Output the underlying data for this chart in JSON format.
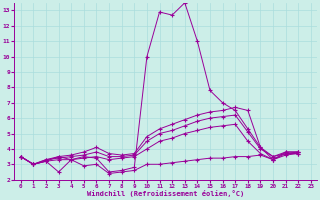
{
  "xlabel": "Windchill (Refroidissement éolien,°C)",
  "bg_color": "#cceee8",
  "grid_color": "#aadddd",
  "line_color": "#990099",
  "xlim": [
    -0.5,
    23.5
  ],
  "ylim": [
    2,
    13.5
  ],
  "xticks": [
    0,
    1,
    2,
    3,
    4,
    5,
    6,
    7,
    8,
    9,
    10,
    11,
    12,
    13,
    14,
    15,
    16,
    17,
    18,
    19,
    20,
    21,
    22,
    23
  ],
  "yticks": [
    2,
    3,
    4,
    5,
    6,
    7,
    8,
    9,
    10,
    11,
    12,
    13
  ],
  "lines": [
    {
      "x": [
        0,
        1,
        2,
        3,
        4,
        5,
        6,
        7,
        8,
        9,
        10,
        11,
        12,
        13,
        14,
        15,
        16,
        17,
        18,
        19,
        20,
        21,
        22
      ],
      "y": [
        3.5,
        3.0,
        3.2,
        3.5,
        3.3,
        3.5,
        3.4,
        2.5,
        2.6,
        2.8,
        10.0,
        12.9,
        12.7,
        13.5,
        11.0,
        7.8,
        7.0,
        6.5,
        5.3,
        4.1,
        3.3,
        3.8,
        3.8
      ]
    },
    {
      "x": [
        0,
        1,
        2,
        3,
        4,
        5,
        6,
        7,
        8,
        9,
        10,
        11,
        12,
        13,
        14,
        15,
        16,
        17,
        18,
        19,
        20,
        21,
        22
      ],
      "y": [
        3.5,
        3.0,
        3.3,
        3.5,
        3.6,
        3.8,
        4.1,
        3.7,
        3.6,
        3.7,
        4.8,
        5.3,
        5.6,
        5.9,
        6.2,
        6.4,
        6.5,
        6.7,
        6.5,
        4.1,
        3.5,
        3.8,
        3.8
      ]
    },
    {
      "x": [
        0,
        1,
        2,
        3,
        4,
        5,
        6,
        7,
        8,
        9,
        10,
        11,
        12,
        13,
        14,
        15,
        16,
        17,
        18,
        19,
        20,
        21,
        22
      ],
      "y": [
        3.5,
        3.0,
        3.3,
        3.4,
        3.5,
        3.6,
        3.8,
        3.5,
        3.5,
        3.6,
        4.5,
        5.0,
        5.2,
        5.5,
        5.8,
        6.0,
        6.1,
        6.2,
        5.1,
        4.0,
        3.5,
        3.7,
        3.7
      ]
    },
    {
      "x": [
        0,
        1,
        2,
        3,
        4,
        5,
        6,
        7,
        8,
        9,
        10,
        11,
        12,
        13,
        14,
        15,
        16,
        17,
        18,
        19,
        20,
        21,
        22
      ],
      "y": [
        3.5,
        3.0,
        3.2,
        3.3,
        3.3,
        3.4,
        3.5,
        3.3,
        3.4,
        3.5,
        4.0,
        4.5,
        4.7,
        5.0,
        5.2,
        5.4,
        5.5,
        5.6,
        4.5,
        3.7,
        3.3,
        3.6,
        3.7
      ]
    },
    {
      "x": [
        0,
        1,
        2,
        3,
        4,
        5,
        6,
        7,
        8,
        9,
        10,
        11,
        12,
        13,
        14,
        15,
        16,
        17,
        18,
        19,
        20,
        21,
        22
      ],
      "y": [
        3.5,
        3.0,
        3.2,
        2.5,
        3.3,
        2.9,
        3.0,
        2.4,
        2.5,
        2.6,
        3.0,
        3.0,
        3.1,
        3.2,
        3.3,
        3.4,
        3.4,
        3.5,
        3.5,
        3.6,
        3.3,
        3.7,
        3.8
      ]
    }
  ]
}
